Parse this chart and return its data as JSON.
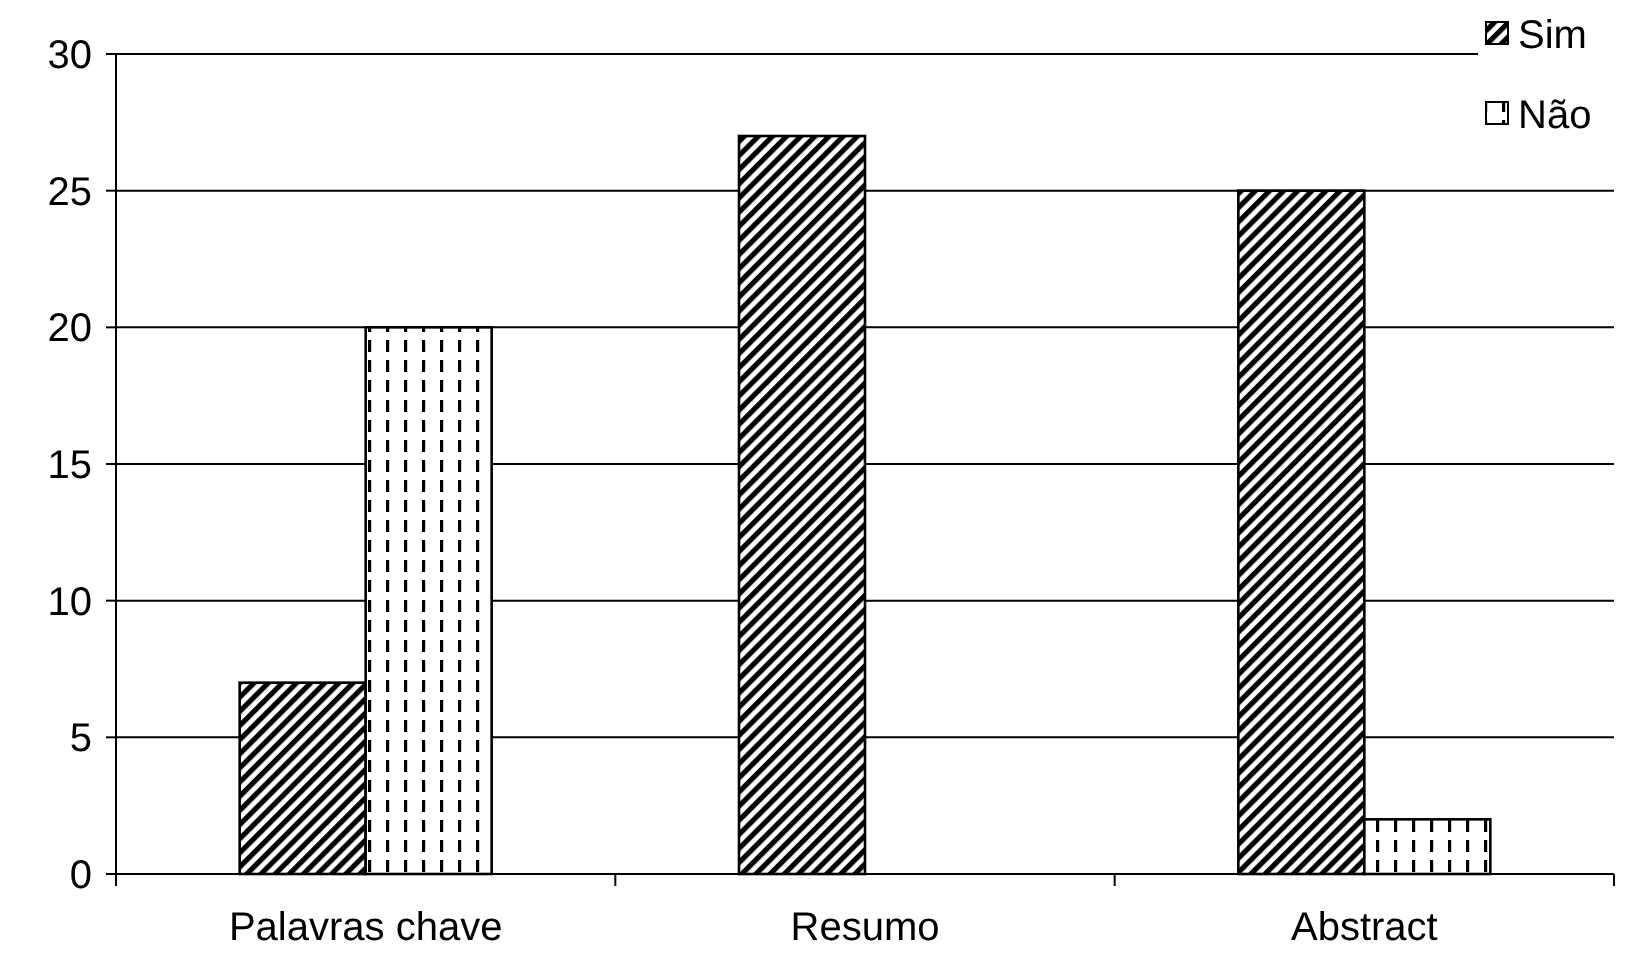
{
  "chart_data": {
    "type": "bar",
    "categories": [
      "Palavras chave",
      "Resumo",
      "Abstract"
    ],
    "series": [
      {
        "name": "Sim",
        "color": "#000000",
        "values": [
          7,
          27,
          25
        ]
      },
      {
        "name": "Não",
        "color": "#000000",
        "values": [
          20,
          0,
          2
        ]
      }
    ],
    "ylim": [
      0,
      30
    ],
    "yticks": [
      0,
      5,
      10,
      15,
      20,
      25,
      30
    ],
    "grid": "y",
    "legend": "top right"
  }
}
